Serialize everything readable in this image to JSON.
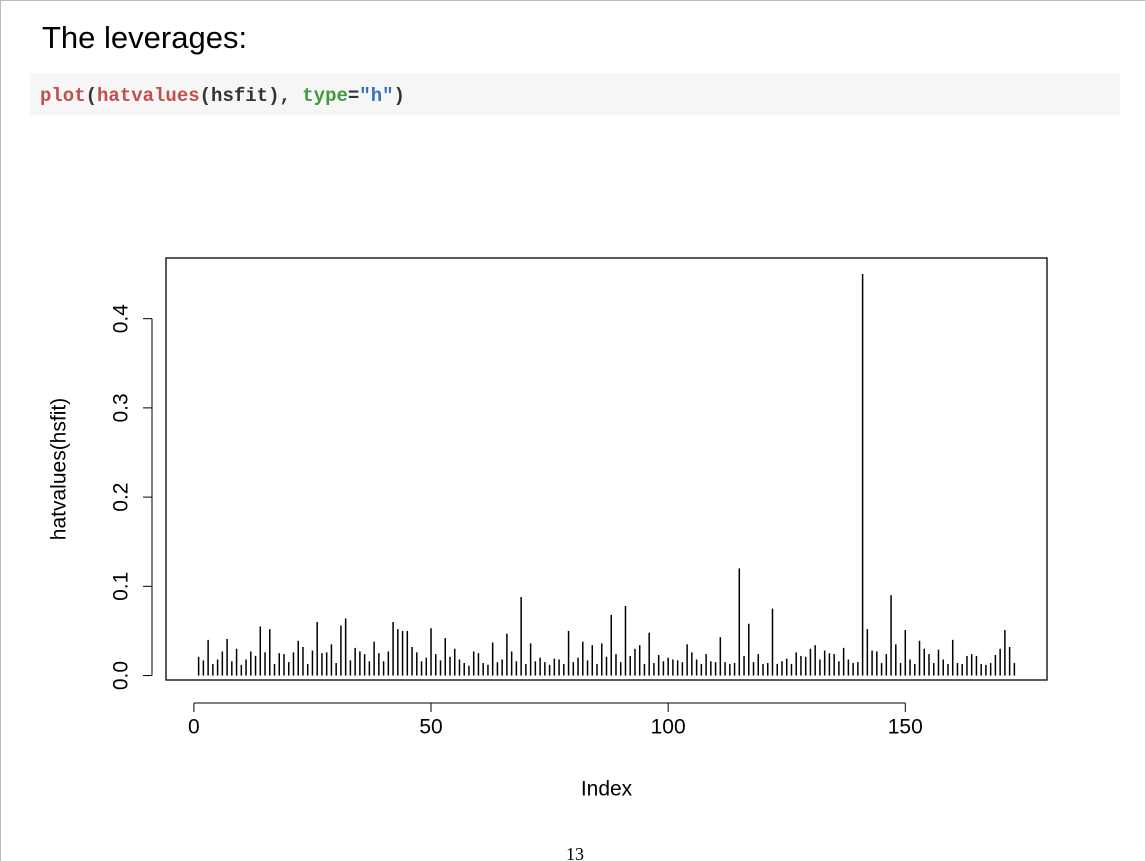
{
  "heading": "The leverages:",
  "code": [
    "plot",
    "(",
    "hatvalues",
    "(",
    "hsfit",
    "), ",
    "type",
    "=",
    "\"h\"",
    ")"
  ],
  "page_number": "13",
  "chart_data": {
    "type": "spike",
    "color": "#000000",
    "x_label": "Index",
    "y_label": "hatvalues(hsfit)",
    "x": [
      1,
      2,
      3,
      4,
      5,
      6,
      7,
      8,
      9,
      10,
      11,
      12,
      13,
      14,
      15,
      16,
      17,
      18,
      19,
      20,
      21,
      22,
      23,
      24,
      25,
      26,
      27,
      28,
      29,
      30,
      31,
      32,
      33,
      34,
      35,
      36,
      37,
      38,
      39,
      40,
      41,
      42,
      43,
      44,
      45,
      46,
      47,
      48,
      49,
      50,
      51,
      52,
      53,
      54,
      55,
      56,
      57,
      58,
      59,
      60,
      61,
      62,
      63,
      64,
      65,
      66,
      67,
      68,
      69,
      70,
      71,
      72,
      73,
      74,
      75,
      76,
      77,
      78,
      79,
      80,
      81,
      82,
      83,
      84,
      85,
      86,
      87,
      88,
      89,
      90,
      91,
      92,
      93,
      94,
      95,
      96,
      97,
      98,
      99,
      100,
      101,
      102,
      103,
      104,
      105,
      106,
      107,
      108,
      109,
      110,
      111,
      112,
      113,
      114,
      115,
      116,
      117,
      118,
      119,
      120,
      121,
      122,
      123,
      124,
      125,
      126,
      127,
      128,
      129,
      130,
      131,
      132,
      133,
      134,
      135,
      136,
      137,
      138,
      139,
      140,
      141,
      142,
      143,
      144,
      145,
      146,
      147,
      148,
      149,
      150,
      151,
      152,
      153,
      154,
      155,
      156,
      157,
      158,
      159,
      160,
      161,
      162,
      163,
      164,
      165,
      166,
      167,
      168,
      169,
      170,
      171,
      172,
      173
    ],
    "values": [
      0.021,
      0.017,
      0.04,
      0.013,
      0.018,
      0.027,
      0.041,
      0.016,
      0.03,
      0.012,
      0.018,
      0.027,
      0.022,
      0.055,
      0.026,
      0.052,
      0.013,
      0.025,
      0.024,
      0.015,
      0.026,
      0.039,
      0.032,
      0.013,
      0.028,
      0.06,
      0.025,
      0.026,
      0.035,
      0.014,
      0.056,
      0.064,
      0.017,
      0.031,
      0.027,
      0.024,
      0.016,
      0.038,
      0.025,
      0.016,
      0.027,
      0.06,
      0.052,
      0.05,
      0.05,
      0.032,
      0.026,
      0.016,
      0.02,
      0.053,
      0.024,
      0.017,
      0.042,
      0.021,
      0.03,
      0.018,
      0.014,
      0.011,
      0.027,
      0.025,
      0.014,
      0.012,
      0.037,
      0.015,
      0.018,
      0.047,
      0.027,
      0.016,
      0.088,
      0.013,
      0.036,
      0.016,
      0.02,
      0.015,
      0.012,
      0.019,
      0.018,
      0.013,
      0.05,
      0.015,
      0.02,
      0.038,
      0.017,
      0.034,
      0.013,
      0.036,
      0.021,
      0.068,
      0.024,
      0.015,
      0.078,
      0.022,
      0.03,
      0.034,
      0.013,
      0.048,
      0.014,
      0.023,
      0.016,
      0.02,
      0.018,
      0.017,
      0.015,
      0.035,
      0.026,
      0.018,
      0.013,
      0.024,
      0.016,
      0.015,
      0.043,
      0.015,
      0.013,
      0.014,
      0.12,
      0.022,
      0.058,
      0.015,
      0.024,
      0.013,
      0.014,
      0.075,
      0.013,
      0.016,
      0.019,
      0.013,
      0.026,
      0.022,
      0.021,
      0.03,
      0.034,
      0.018,
      0.028,
      0.025,
      0.024,
      0.016,
      0.031,
      0.018,
      0.014,
      0.015,
      0.45,
      0.052,
      0.028,
      0.027,
      0.014,
      0.024,
      0.09,
      0.035,
      0.014,
      0.051,
      0.018,
      0.013,
      0.039,
      0.03,
      0.024,
      0.014,
      0.029,
      0.018,
      0.013,
      0.04,
      0.014,
      0.013,
      0.022,
      0.024,
      0.022,
      0.013,
      0.012,
      0.014,
      0.023,
      0.03,
      0.051,
      0.032,
      0.014
    ],
    "xlim": [
      -5.88,
      179.88
    ],
    "xticks": [
      0,
      50,
      100,
      150
    ],
    "ylim": [
      -0.005,
      0.468
    ],
    "yticks": [
      0.0,
      0.1,
      0.2,
      0.3,
      0.4
    ]
  }
}
